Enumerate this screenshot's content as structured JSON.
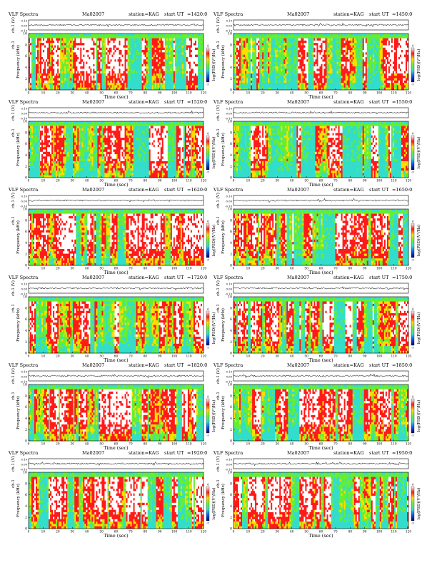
{
  "figure": {
    "panel_header": {
      "title": "VLF Spectra",
      "date": "Ma02007",
      "station": "station=KAG",
      "start_label": "start  UT"
    },
    "ch_label": "ch.1 (V)",
    "freq_label": "ch.1",
    "freq_unit_label": "Frequency  (kHz)",
    "time_label": "Time  (sec)",
    "colorbar_label": "log(PSD)(V²/Hz)"
  },
  "chart_data": [
    {
      "type": "heatmap",
      "panel": "top-left",
      "start_ut": "=1420:0",
      "waveform_yticks": [
        "0.10",
        "0.00",
        "-0.10"
      ],
      "x": {
        "label": "Time (sec)",
        "ticks": [
          0,
          10,
          20,
          30,
          40,
          50,
          60,
          70,
          80,
          90,
          100,
          110,
          120
        ],
        "range": [
          0,
          120
        ]
      },
      "y": {
        "label": "Frequency (kHz)",
        "ticks": [
          0,
          2,
          4,
          6,
          8,
          10
        ],
        "range": [
          0,
          10
        ]
      },
      "colorbar": {
        "ticks": [
          "4",
          "-5"
        ],
        "colors": [
          "#ffffff",
          "#ff1a1a",
          "#ffdd00",
          "#66ee33",
          "#33ddcc",
          "#1155ee",
          "#000066"
        ]
      }
    },
    {
      "type": "heatmap",
      "panel": "top-right",
      "start_ut": "=1450:0",
      "waveform_yticks": [
        "0.10",
        "0.00",
        "-0.10"
      ],
      "x": {
        "label": "Time (sec)",
        "ticks": [
          0,
          10,
          20,
          30,
          40,
          50,
          60,
          70,
          80,
          90,
          100,
          110,
          120
        ],
        "range": [
          0,
          120
        ]
      },
      "y": {
        "label": "Frequency (kHz)",
        "ticks": [
          0,
          2,
          4,
          6,
          8,
          10
        ],
        "range": [
          0,
          10
        ]
      },
      "colorbar": {
        "ticks": [
          "4",
          "-5"
        ],
        "colors": [
          "#ffffff",
          "#ff1a1a",
          "#ffdd00",
          "#66ee33",
          "#33ddcc",
          "#1155ee",
          "#000066"
        ]
      }
    },
    {
      "type": "heatmap",
      "panel": "row2-left",
      "start_ut": "=1520:0",
      "waveform_yticks": [
        "0.10",
        "0.00",
        "-0.10"
      ],
      "x": {
        "label": "Time (sec)",
        "ticks": [
          0,
          10,
          20,
          30,
          40,
          50,
          60,
          70,
          80,
          90,
          100,
          110,
          120
        ],
        "range": [
          0,
          120
        ]
      },
      "y": {
        "label": "Frequency (kHz)",
        "ticks": [
          0,
          2,
          4,
          6,
          8,
          10
        ],
        "range": [
          0,
          10
        ]
      },
      "colorbar": {
        "ticks": [
          "4",
          "-5"
        ],
        "colors": [
          "#ffffff",
          "#ff1a1a",
          "#ffdd00",
          "#66ee33",
          "#33ddcc",
          "#1155ee",
          "#000066"
        ]
      }
    },
    {
      "type": "heatmap",
      "panel": "row2-right",
      "start_ut": "=1550:0",
      "waveform_yticks": [
        "0.10",
        "0.00",
        "-0.10"
      ],
      "x": {
        "label": "Time (sec)",
        "ticks": [
          0,
          10,
          20,
          30,
          40,
          50,
          60,
          70,
          80,
          90,
          100,
          110,
          120
        ],
        "range": [
          0,
          120
        ]
      },
      "y": {
        "label": "Frequency (kHz)",
        "ticks": [
          0,
          2,
          4,
          6,
          8,
          10
        ],
        "range": [
          0,
          10
        ]
      },
      "colorbar": {
        "ticks": [
          "4",
          "-5"
        ],
        "colors": [
          "#ffffff",
          "#ff1a1a",
          "#ffdd00",
          "#66ee33",
          "#33ddcc",
          "#1155ee",
          "#000066"
        ]
      }
    },
    {
      "type": "heatmap",
      "panel": "row3-left",
      "start_ut": "=1620:0",
      "waveform_yticks": [
        "0.10",
        "0.00",
        "-0.10"
      ],
      "x": {
        "label": "Time (sec)",
        "ticks": [
          0,
          10,
          20,
          30,
          40,
          50,
          60,
          70,
          80,
          90,
          100,
          110,
          120
        ],
        "range": [
          0,
          120
        ]
      },
      "y": {
        "label": "Frequency (kHz)",
        "ticks": [
          0,
          2,
          4,
          6,
          8,
          10
        ],
        "range": [
          0,
          10
        ]
      },
      "colorbar": {
        "ticks": [
          "4",
          "-5"
        ],
        "colors": [
          "#ffffff",
          "#ff1a1a",
          "#ffdd00",
          "#66ee33",
          "#33ddcc",
          "#1155ee",
          "#000066"
        ]
      }
    },
    {
      "type": "heatmap",
      "panel": "row3-right",
      "start_ut": "=1650:0",
      "waveform_yticks": [
        "0.10",
        "0.00",
        "-0.10"
      ],
      "x": {
        "label": "Time (sec)",
        "ticks": [
          0,
          10,
          20,
          30,
          40,
          50,
          60,
          70,
          80,
          90,
          100,
          110,
          120
        ],
        "range": [
          0,
          120
        ]
      },
      "y": {
        "label": "Frequency (kHz)",
        "ticks": [
          0,
          2,
          4,
          6,
          8,
          10
        ],
        "range": [
          0,
          10
        ]
      },
      "colorbar": {
        "ticks": [
          "4",
          "-5"
        ],
        "colors": [
          "#ffffff",
          "#ff1a1a",
          "#ffdd00",
          "#66ee33",
          "#33ddcc",
          "#1155ee",
          "#000066"
        ]
      }
    },
    {
      "type": "heatmap",
      "panel": "row4-left",
      "start_ut": "=1720:0",
      "waveform_yticks": [
        "0.10",
        "0.00",
        "-0.10"
      ],
      "x": {
        "label": "Time (sec)",
        "ticks": [
          0,
          10,
          20,
          30,
          40,
          50,
          60,
          70,
          80,
          90,
          100,
          110,
          120
        ],
        "range": [
          0,
          120
        ]
      },
      "y": {
        "label": "Frequency (kHz)",
        "ticks": [
          0,
          2,
          4,
          6,
          8,
          10
        ],
        "range": [
          0,
          10
        ]
      },
      "colorbar": {
        "ticks": [
          "4",
          "-5"
        ],
        "colors": [
          "#ffffff",
          "#ff1a1a",
          "#ffdd00",
          "#66ee33",
          "#33ddcc",
          "#1155ee",
          "#000066"
        ]
      }
    },
    {
      "type": "heatmap",
      "panel": "row4-right",
      "start_ut": "=1750:0",
      "waveform_yticks": [
        "0.10",
        "0.00",
        "-0.10"
      ],
      "x": {
        "label": "Time (sec)",
        "ticks": [
          0,
          10,
          20,
          30,
          40,
          50,
          60,
          70,
          80,
          90,
          100,
          110,
          120
        ],
        "range": [
          0,
          120
        ]
      },
      "y": {
        "label": "Frequency (kHz)",
        "ticks": [
          0,
          2,
          4,
          6,
          8,
          10
        ],
        "range": [
          0,
          10
        ]
      },
      "colorbar": {
        "ticks": [
          "4",
          "-5"
        ],
        "colors": [
          "#ffffff",
          "#ff1a1a",
          "#ffdd00",
          "#66ee33",
          "#33ddcc",
          "#1155ee",
          "#000066"
        ]
      }
    },
    {
      "type": "heatmap",
      "panel": "row5-left",
      "start_ut": "=1820:0",
      "waveform_yticks": [
        "0.10",
        "0.00",
        "-0.10"
      ],
      "x": {
        "label": "Time (sec)",
        "ticks": [
          0,
          10,
          20,
          30,
          40,
          50,
          60,
          70,
          80,
          90,
          100,
          110,
          120
        ],
        "range": [
          0,
          120
        ]
      },
      "y": {
        "label": "Frequency (kHz)",
        "ticks": [
          0,
          2,
          4,
          6,
          8,
          10
        ],
        "range": [
          0,
          10
        ]
      },
      "colorbar": {
        "ticks": [
          "4",
          "-5"
        ],
        "colors": [
          "#ffffff",
          "#ff1a1a",
          "#ffdd00",
          "#66ee33",
          "#33ddcc",
          "#1155ee",
          "#000066"
        ]
      }
    },
    {
      "type": "heatmap",
      "panel": "row5-right",
      "start_ut": "=1850:0",
      "waveform_yticks": [
        "0.10",
        "0.00",
        "-0.10"
      ],
      "x": {
        "label": "Time (sec)",
        "ticks": [
          0,
          10,
          20,
          30,
          40,
          50,
          60,
          70,
          80,
          90,
          100,
          110,
          120
        ],
        "range": [
          0,
          120
        ]
      },
      "y": {
        "label": "Frequency (kHz)",
        "ticks": [
          0,
          2,
          4,
          6,
          8,
          10
        ],
        "range": [
          0,
          10
        ]
      },
      "colorbar": {
        "ticks": [
          "4",
          "-5"
        ],
        "colors": [
          "#ffffff",
          "#ff1a1a",
          "#ffdd00",
          "#66ee33",
          "#33ddcc",
          "#1155ee",
          "#000066"
        ]
      }
    },
    {
      "type": "heatmap",
      "panel": "bottom-left",
      "start_ut": "=1920:0",
      "waveform_yticks": [
        "0.10",
        "0.00",
        "-0.10"
      ],
      "x": {
        "label": "Time (sec)",
        "ticks": [
          0,
          10,
          20,
          30,
          40,
          50,
          60,
          70,
          80,
          90,
          100,
          110,
          120
        ],
        "range": [
          0,
          120
        ]
      },
      "y": {
        "label": "Frequency (kHz)",
        "ticks": [
          0,
          2,
          4,
          6,
          8,
          10
        ],
        "range": [
          0,
          10
        ]
      },
      "colorbar": {
        "ticks": [
          "4",
          "-5"
        ],
        "colors": [
          "#ffffff",
          "#ff1a1a",
          "#ffdd00",
          "#66ee33",
          "#33ddcc",
          "#1155ee",
          "#000066"
        ]
      }
    },
    {
      "type": "heatmap",
      "panel": "bottom-right",
      "start_ut": "=1950:0",
      "waveform_yticks": [
        "0.10",
        "0.00",
        "-0.10"
      ],
      "x": {
        "label": "Time (sec)",
        "ticks": [
          0,
          10,
          20,
          30,
          40,
          50,
          60,
          70,
          80,
          90,
          100,
          110,
          120
        ],
        "range": [
          0,
          120
        ]
      },
      "y": {
        "label": "Frequency (kHz)",
        "ticks": [
          0,
          2,
          4,
          6,
          8,
          10
        ],
        "range": [
          0,
          10
        ]
      },
      "colorbar": {
        "ticks": [
          "4",
          "-5"
        ],
        "colors": [
          "#ffffff",
          "#ff1a1a",
          "#ffdd00",
          "#66ee33",
          "#33ddcc",
          "#1155ee",
          "#000066"
        ]
      }
    }
  ]
}
